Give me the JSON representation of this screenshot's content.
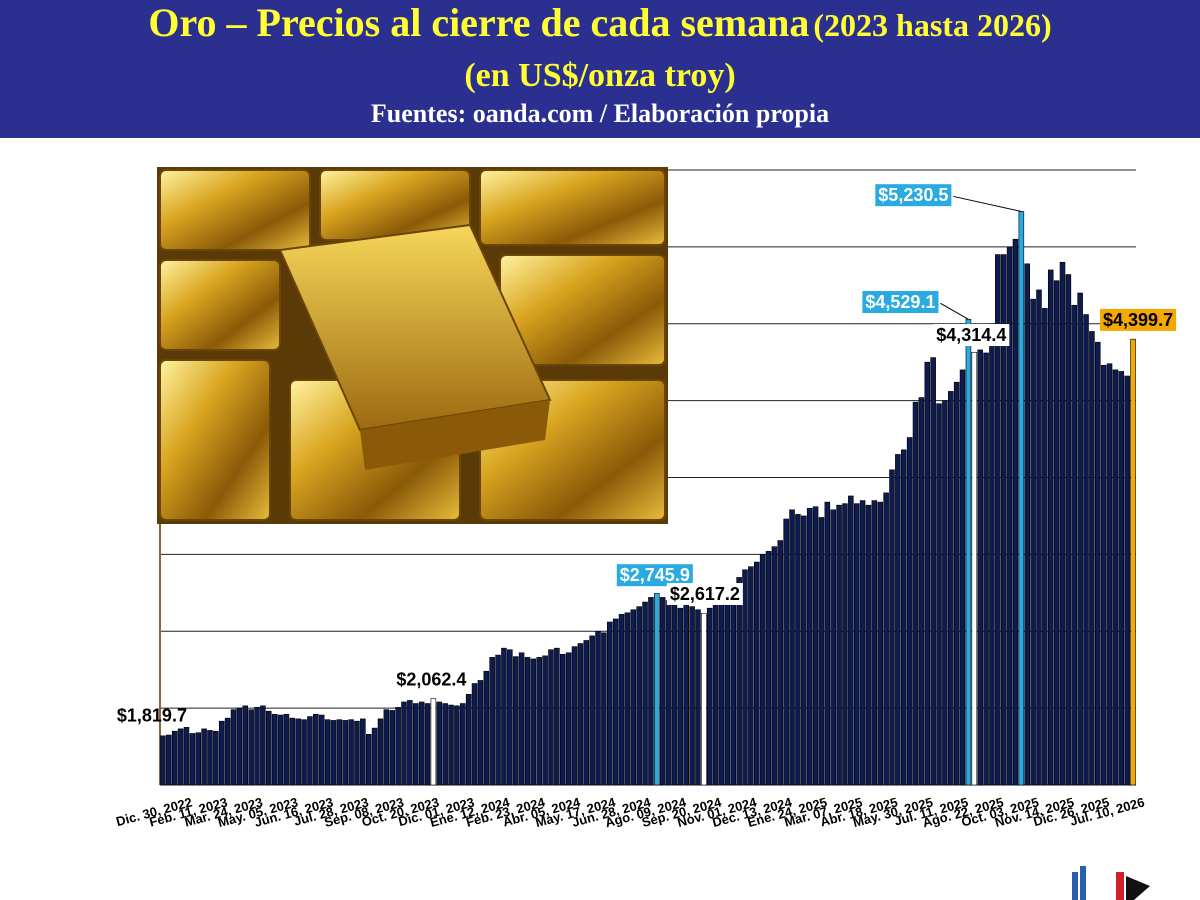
{
  "chart_data": {
    "type": "bar",
    "title": "Oro – Precios al cierre de cada semana",
    "title_suffix": "(2023 hasta 2026)",
    "subtitle": "(en US$/onza troy)",
    "source": "Fuentes: oanda.com / Elaboración propia",
    "color": "#0d1b4f",
    "ylim": [
      1500,
      5500
    ],
    "yticks": [
      1500,
      2000,
      2500,
      3000,
      3500,
      4000,
      4500,
      5000,
      5500
    ],
    "grid": true,
    "categories": [
      "Dic. 30, 2022",
      null,
      null,
      null,
      null,
      null,
      "Feb. 11, 2023",
      null,
      null,
      null,
      null,
      null,
      "Mar. 24, 2023",
      null,
      null,
      null,
      null,
      null,
      "May. 05, 2023",
      null,
      null,
      null,
      null,
      null,
      "Jun. 16, 2023",
      null,
      null,
      null,
      null,
      null,
      "Jul. 28, 2023",
      null,
      null,
      null,
      null,
      null,
      "Sep. 08, 2023",
      null,
      null,
      null,
      null,
      null,
      "Oct. 20, 2023",
      null,
      null,
      null,
      null,
      null,
      "Dic. 01, 2023",
      null,
      null,
      null,
      null,
      null,
      "Ene. 12, 2024",
      null,
      null,
      null,
      null,
      null,
      "Feb. 23, 2024",
      null,
      null,
      null,
      null,
      null,
      "Abr. 05, 2024",
      null,
      null,
      null,
      null,
      null,
      "May. 17, 2024",
      null,
      null,
      null,
      null,
      null,
      "Jun. 28, 2024",
      null,
      null,
      null,
      null,
      null,
      "Ago. 09, 2024",
      null,
      null,
      null,
      null,
      null,
      "Sep. 20, 2024",
      null,
      null,
      null,
      null,
      null,
      "Nov. 01, 2024",
      null,
      null,
      null,
      null,
      null,
      "Dec. 13, 2024",
      null,
      null,
      null,
      null,
      null,
      "Ene. 24, 2025",
      null,
      null,
      null,
      null,
      null,
      "Mar. 07, 2025",
      null,
      null,
      null,
      null,
      null,
      "Abr. 18, 2025",
      null,
      null,
      null,
      null,
      null,
      "May. 30, 2025",
      null,
      null,
      null,
      null,
      null,
      "Jul. 11, 2025",
      null,
      null,
      null,
      null,
      null,
      "Ago. 22, 2025",
      null,
      null,
      null,
      null,
      null,
      "Oct. 03, 2025",
      null,
      null,
      null,
      null,
      null,
      "Nov. 14, 2025",
      null,
      null,
      null,
      null,
      null,
      "Dic. 26, 2025",
      null,
      null,
      null,
      null,
      null,
      "Jul. 10, 2026",
      null,
      null,
      null
    ],
    "values": [
      1819.7,
      1825,
      1850,
      1865,
      1875,
      1835,
      1840,
      1865,
      1855,
      1850,
      1915,
      1935,
      1990,
      2000,
      2015,
      1990,
      2005,
      2015,
      1980,
      1960,
      1955,
      1960,
      1935,
      1930,
      1925,
      1945,
      1960,
      1955,
      1925,
      1920,
      1925,
      1920,
      1925,
      1915,
      1930,
      1830,
      1870,
      1930,
      1990,
      1985,
      2005,
      2040,
      2050,
      2030,
      2040,
      2030,
      2062.4,
      2040,
      2030,
      2020,
      2015,
      2030,
      2090,
      2160,
      2180,
      2240,
      2330,
      2345,
      2390,
      2380,
      2335,
      2360,
      2330,
      2320,
      2330,
      2340,
      2380,
      2390,
      2350,
      2360,
      2400,
      2420,
      2440,
      2470,
      2500,
      2490,
      2560,
      2580,
      2610,
      2620,
      2640,
      2660,
      2690,
      2720,
      2745.9,
      2720,
      2700,
      2730,
      2650,
      2680,
      2660,
      2640,
      2617.2,
      2650,
      2700,
      2730,
      2760,
      2790,
      2850,
      2900,
      2920,
      2950,
      3000,
      3020,
      3050,
      3090,
      3230,
      3290,
      3260,
      3250,
      3300,
      3310,
      3240,
      3340,
      3290,
      3320,
      3330,
      3380,
      3330,
      3350,
      3320,
      3350,
      3340,
      3400,
      3550,
      3650,
      3680,
      3760,
      3990,
      4020,
      4250,
      4280,
      3980,
      4000,
      4060,
      4120,
      4200,
      4529.1,
      4314.4,
      4330,
      4310,
      4500,
      4950,
      4950,
      5000,
      5050,
      5230.5,
      4890,
      4660,
      4720,
      4600,
      4850,
      4780,
      4900,
      4820,
      4620,
      4700,
      4560,
      4450,
      4380,
      4230,
      4240,
      4200,
      4190,
      4160,
      4399.7
    ],
    "value_labels": [
      "$1,819.7",
      null,
      null,
      null,
      null,
      null,
      null,
      null,
      null,
      null,
      null,
      null,
      null,
      null,
      null,
      null,
      null,
      null,
      null,
      null,
      null,
      null,
      null,
      null,
      null,
      null,
      null,
      null,
      null,
      null,
      null,
      null,
      null,
      null,
      null,
      null,
      null,
      null,
      null,
      null,
      null,
      null,
      null,
      null,
      null,
      null,
      "$2,062.4",
      null,
      null,
      null,
      null,
      null,
      null,
      null,
      null,
      null,
      null,
      null,
      null,
      null,
      null,
      null,
      null,
      null,
      null,
      null,
      null,
      null,
      null,
      null,
      null,
      null,
      null,
      null,
      null,
      null,
      null,
      null,
      null,
      null,
      null,
      null,
      null,
      null,
      "$2,745.9",
      null,
      null,
      null,
      null,
      null,
      null,
      null,
      "$2,617.2",
      null,
      null,
      null,
      null,
      null,
      null,
      null,
      null,
      null,
      null,
      null,
      null,
      null,
      null,
      null,
      null,
      null,
      null,
      null,
      null,
      null,
      null,
      null,
      null,
      null,
      null,
      null,
      null,
      null,
      null,
      null,
      null,
      null,
      null,
      null,
      null,
      null,
      null,
      null,
      null,
      null,
      null,
      null,
      null,
      "$4,529.1",
      "$4,314.4",
      null,
      null,
      null,
      null,
      null,
      null,
      null,
      "$5,230.5",
      null,
      null,
      null,
      null,
      null,
      null,
      null,
      null,
      null,
      null,
      null,
      null,
      null,
      null,
      null,
      null,
      null,
      null,
      "$4,399.7"
    ],
    "colors": [
      null,
      null,
      null,
      null,
      null,
      null,
      null,
      null,
      null,
      null,
      null,
      null,
      null,
      null,
      null,
      null,
      null,
      null,
      null,
      null,
      null,
      null,
      null,
      null,
      null,
      null,
      null,
      null,
      null,
      null,
      null,
      null,
      null,
      null,
      null,
      null,
      null,
      null,
      null,
      null,
      null,
      null,
      null,
      null,
      null,
      null,
      "#ffffff",
      null,
      null,
      null,
      null,
      null,
      null,
      null,
      null,
      null,
      null,
      null,
      null,
      null,
      null,
      null,
      null,
      null,
      null,
      null,
      null,
      null,
      null,
      null,
      null,
      null,
      null,
      null,
      null,
      null,
      null,
      null,
      null,
      null,
      null,
      null,
      null,
      null,
      "#29abe2",
      null,
      null,
      null,
      null,
      null,
      null,
      null,
      "#ffffff",
      null,
      null,
      null,
      null,
      null,
      null,
      null,
      null,
      null,
      null,
      null,
      null,
      null,
      null,
      null,
      null,
      null,
      null,
      null,
      null,
      null,
      null,
      null,
      null,
      null,
      null,
      null,
      null,
      null,
      null,
      null,
      null,
      null,
      null,
      null,
      null,
      null,
      null,
      null,
      null,
      null,
      null,
      null,
      null,
      "#29abe2",
      "#ffffff",
      null,
      null,
      null,
      null,
      null,
      null,
      null,
      "#29abe2",
      null,
      null,
      null,
      null,
      null,
      null,
      null,
      null,
      null,
      null,
      null,
      null,
      null,
      null,
      null,
      null,
      null,
      null,
      "#f5a800"
    ]
  }
}
